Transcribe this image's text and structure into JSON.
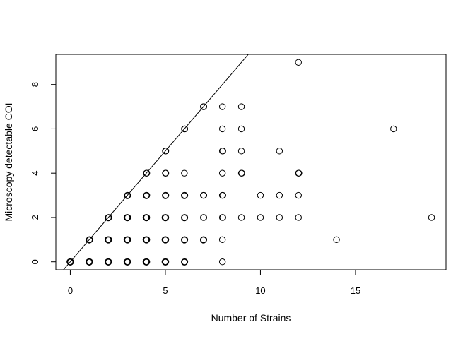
{
  "chart_data": {
    "type": "scatter",
    "title": "",
    "xlabel": "Number of Strains",
    "ylabel": "Microscopy detectable COI",
    "xlim": [
      -0.76,
      19.76
    ],
    "ylim": [
      -0.36,
      9.36
    ],
    "x_ticks": [
      0,
      5,
      10,
      15
    ],
    "y_ticks": [
      0,
      2,
      4,
      6,
      8
    ],
    "x_tick_labels": [
      "0",
      "5",
      "10",
      "15"
    ],
    "y_tick_labels": [
      "0",
      "2",
      "4",
      "6",
      "8"
    ],
    "grid": false,
    "legend": "none",
    "reference_line": {
      "intercept": 0,
      "slope": 1
    },
    "marker": "open-circle",
    "points": [
      {
        "x": 0,
        "y": 0,
        "n": 4
      },
      {
        "x": 1,
        "y": 0,
        "n": 4
      },
      {
        "x": 1,
        "y": 1,
        "n": 3
      },
      {
        "x": 2,
        "y": 0,
        "n": 4
      },
      {
        "x": 2,
        "y": 1,
        "n": 4
      },
      {
        "x": 2,
        "y": 2,
        "n": 3
      },
      {
        "x": 3,
        "y": 0,
        "n": 4
      },
      {
        "x": 3,
        "y": 1,
        "n": 4
      },
      {
        "x": 3,
        "y": 2,
        "n": 4
      },
      {
        "x": 3,
        "y": 3,
        "n": 3
      },
      {
        "x": 4,
        "y": 0,
        "n": 4
      },
      {
        "x": 4,
        "y": 1,
        "n": 4
      },
      {
        "x": 4,
        "y": 2,
        "n": 4
      },
      {
        "x": 4,
        "y": 3,
        "n": 3
      },
      {
        "x": 4,
        "y": 4,
        "n": 2
      },
      {
        "x": 5,
        "y": 0,
        "n": 4
      },
      {
        "x": 5,
        "y": 1,
        "n": 4
      },
      {
        "x": 5,
        "y": 2,
        "n": 4
      },
      {
        "x": 5,
        "y": 3,
        "n": 3
      },
      {
        "x": 5,
        "y": 4,
        "n": 2
      },
      {
        "x": 5,
        "y": 5,
        "n": 2
      },
      {
        "x": 6,
        "y": 0,
        "n": 3
      },
      {
        "x": 6,
        "y": 1,
        "n": 3
      },
      {
        "x": 6,
        "y": 2,
        "n": 3
      },
      {
        "x": 6,
        "y": 3,
        "n": 3
      },
      {
        "x": 6,
        "y": 4,
        "n": 1
      },
      {
        "x": 6,
        "y": 6,
        "n": 2
      },
      {
        "x": 7,
        "y": 1,
        "n": 3
      },
      {
        "x": 7,
        "y": 2,
        "n": 2
      },
      {
        "x": 7,
        "y": 3,
        "n": 2
      },
      {
        "x": 7,
        "y": 7,
        "n": 2
      },
      {
        "x": 8,
        "y": 0,
        "n": 1
      },
      {
        "x": 8,
        "y": 1,
        "n": 1
      },
      {
        "x": 8,
        "y": 2,
        "n": 2
      },
      {
        "x": 8,
        "y": 3,
        "n": 2
      },
      {
        "x": 8,
        "y": 4,
        "n": 1
      },
      {
        "x": 8,
        "y": 5,
        "n": 2
      },
      {
        "x": 8,
        "y": 6,
        "n": 1
      },
      {
        "x": 8,
        "y": 7,
        "n": 1
      },
      {
        "x": 9,
        "y": 2,
        "n": 1
      },
      {
        "x": 9,
        "y": 4,
        "n": 2
      },
      {
        "x": 9,
        "y": 5,
        "n": 1
      },
      {
        "x": 9,
        "y": 6,
        "n": 1
      },
      {
        "x": 9,
        "y": 7,
        "n": 1
      },
      {
        "x": 10,
        "y": 2,
        "n": 1
      },
      {
        "x": 10,
        "y": 3,
        "n": 1
      },
      {
        "x": 11,
        "y": 2,
        "n": 1
      },
      {
        "x": 11,
        "y": 3,
        "n": 1
      },
      {
        "x": 11,
        "y": 5,
        "n": 1
      },
      {
        "x": 12,
        "y": 2,
        "n": 1
      },
      {
        "x": 12,
        "y": 3,
        "n": 1
      },
      {
        "x": 12,
        "y": 4,
        "n": 2
      },
      {
        "x": 12,
        "y": 9,
        "n": 1
      },
      {
        "x": 14,
        "y": 1,
        "n": 1
      },
      {
        "x": 17,
        "y": 6,
        "n": 1
      },
      {
        "x": 19,
        "y": 2,
        "n": 1
      }
    ]
  }
}
